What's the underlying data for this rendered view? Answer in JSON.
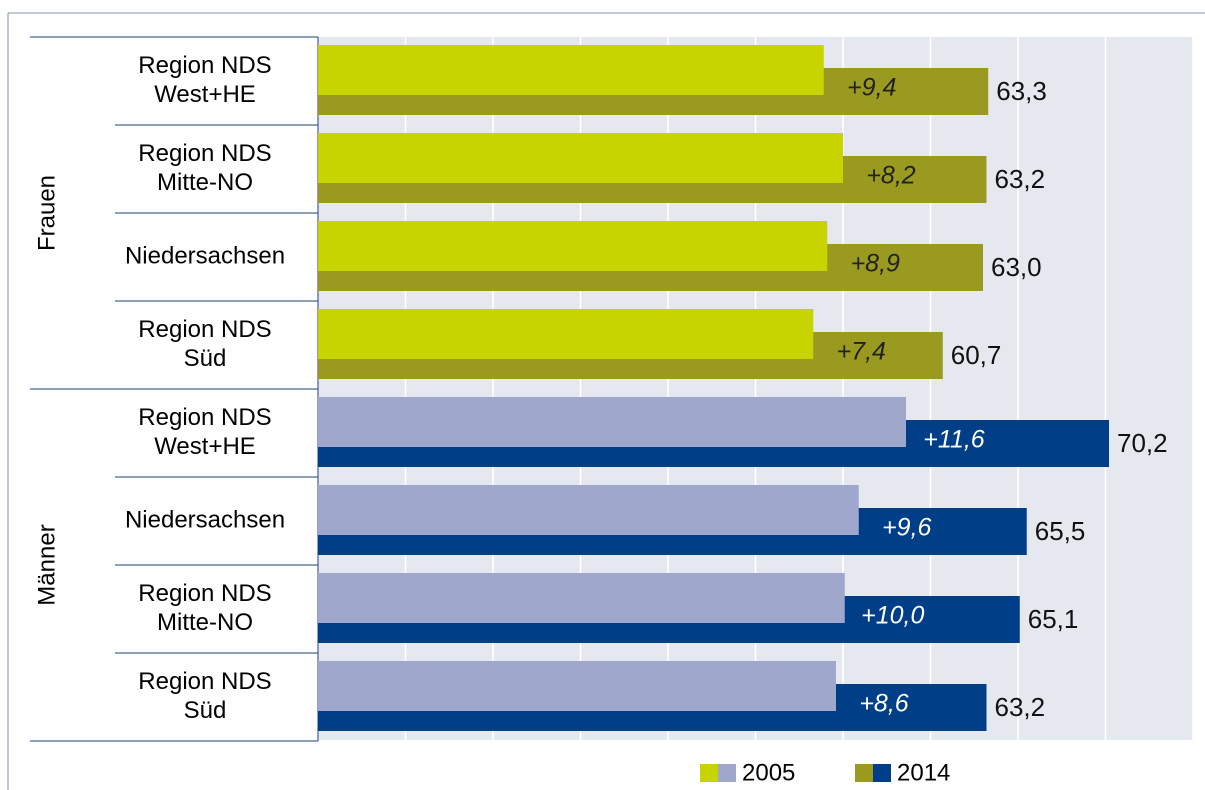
{
  "chart_data": {
    "type": "bar",
    "orientation": "horizontal",
    "groups": [
      {
        "name": "Frauen",
        "start": 0,
        "count": 4
      },
      {
        "name": "Männer",
        "start": 4,
        "count": 4
      }
    ],
    "categories": [
      [
        "Region NDS",
        "West+HE"
      ],
      [
        "Region NDS",
        "Mitte-NO"
      ],
      [
        "Niedersachsen"
      ],
      [
        "Region NDS",
        "Süd"
      ],
      [
        "Region NDS",
        "West+HE"
      ],
      [
        "Niedersachsen"
      ],
      [
        "Region NDS",
        "Mitte-NO"
      ],
      [
        "Region NDS",
        "Süd"
      ]
    ],
    "series": [
      {
        "name": "2005",
        "colors": [
          "#c8d400",
          "#c8d400",
          "#c8d400",
          "#c8d400",
          "#9fa8cc",
          "#9fa8cc",
          "#9fa8cc",
          "#9fa8cc"
        ],
        "values": [
          53.9,
          55.0,
          54.1,
          53.3,
          58.6,
          55.9,
          55.1,
          54.6
        ]
      },
      {
        "name": "2014",
        "colors": [
          "#9a9a20",
          "#9a9a20",
          "#9a9a20",
          "#9a9a20",
          "#003f87",
          "#003f87",
          "#003f87",
          "#003f87"
        ],
        "values": [
          63.3,
          63.2,
          63.0,
          60.7,
          70.2,
          65.5,
          65.1,
          63.2
        ],
        "value_labels": [
          "63,3",
          "63,2",
          "63,0",
          "60,7",
          "70,2",
          "65,5",
          "65,1",
          "63,2"
        ]
      }
    ],
    "changes": {
      "values": [
        9.4,
        8.2,
        8.9,
        7.4,
        11.6,
        9.6,
        10.0,
        8.6
      ],
      "value_labels": [
        "+9,4",
        "+8,2",
        "+8,9",
        "+7,4",
        "+11,6",
        "+9,6",
        "+10,0",
        "+8,6"
      ],
      "colors": [
        "#222222",
        "#222222",
        "#222222",
        "#222222",
        "#ffffff",
        "#ffffff",
        "#ffffff",
        "#ffffff"
      ]
    },
    "xlim": [
      25,
      75
    ],
    "xticks": [
      25,
      30,
      35,
      40,
      45,
      50,
      55,
      60,
      65,
      70,
      75
    ],
    "grid": true,
    "legend": "bottom"
  }
}
